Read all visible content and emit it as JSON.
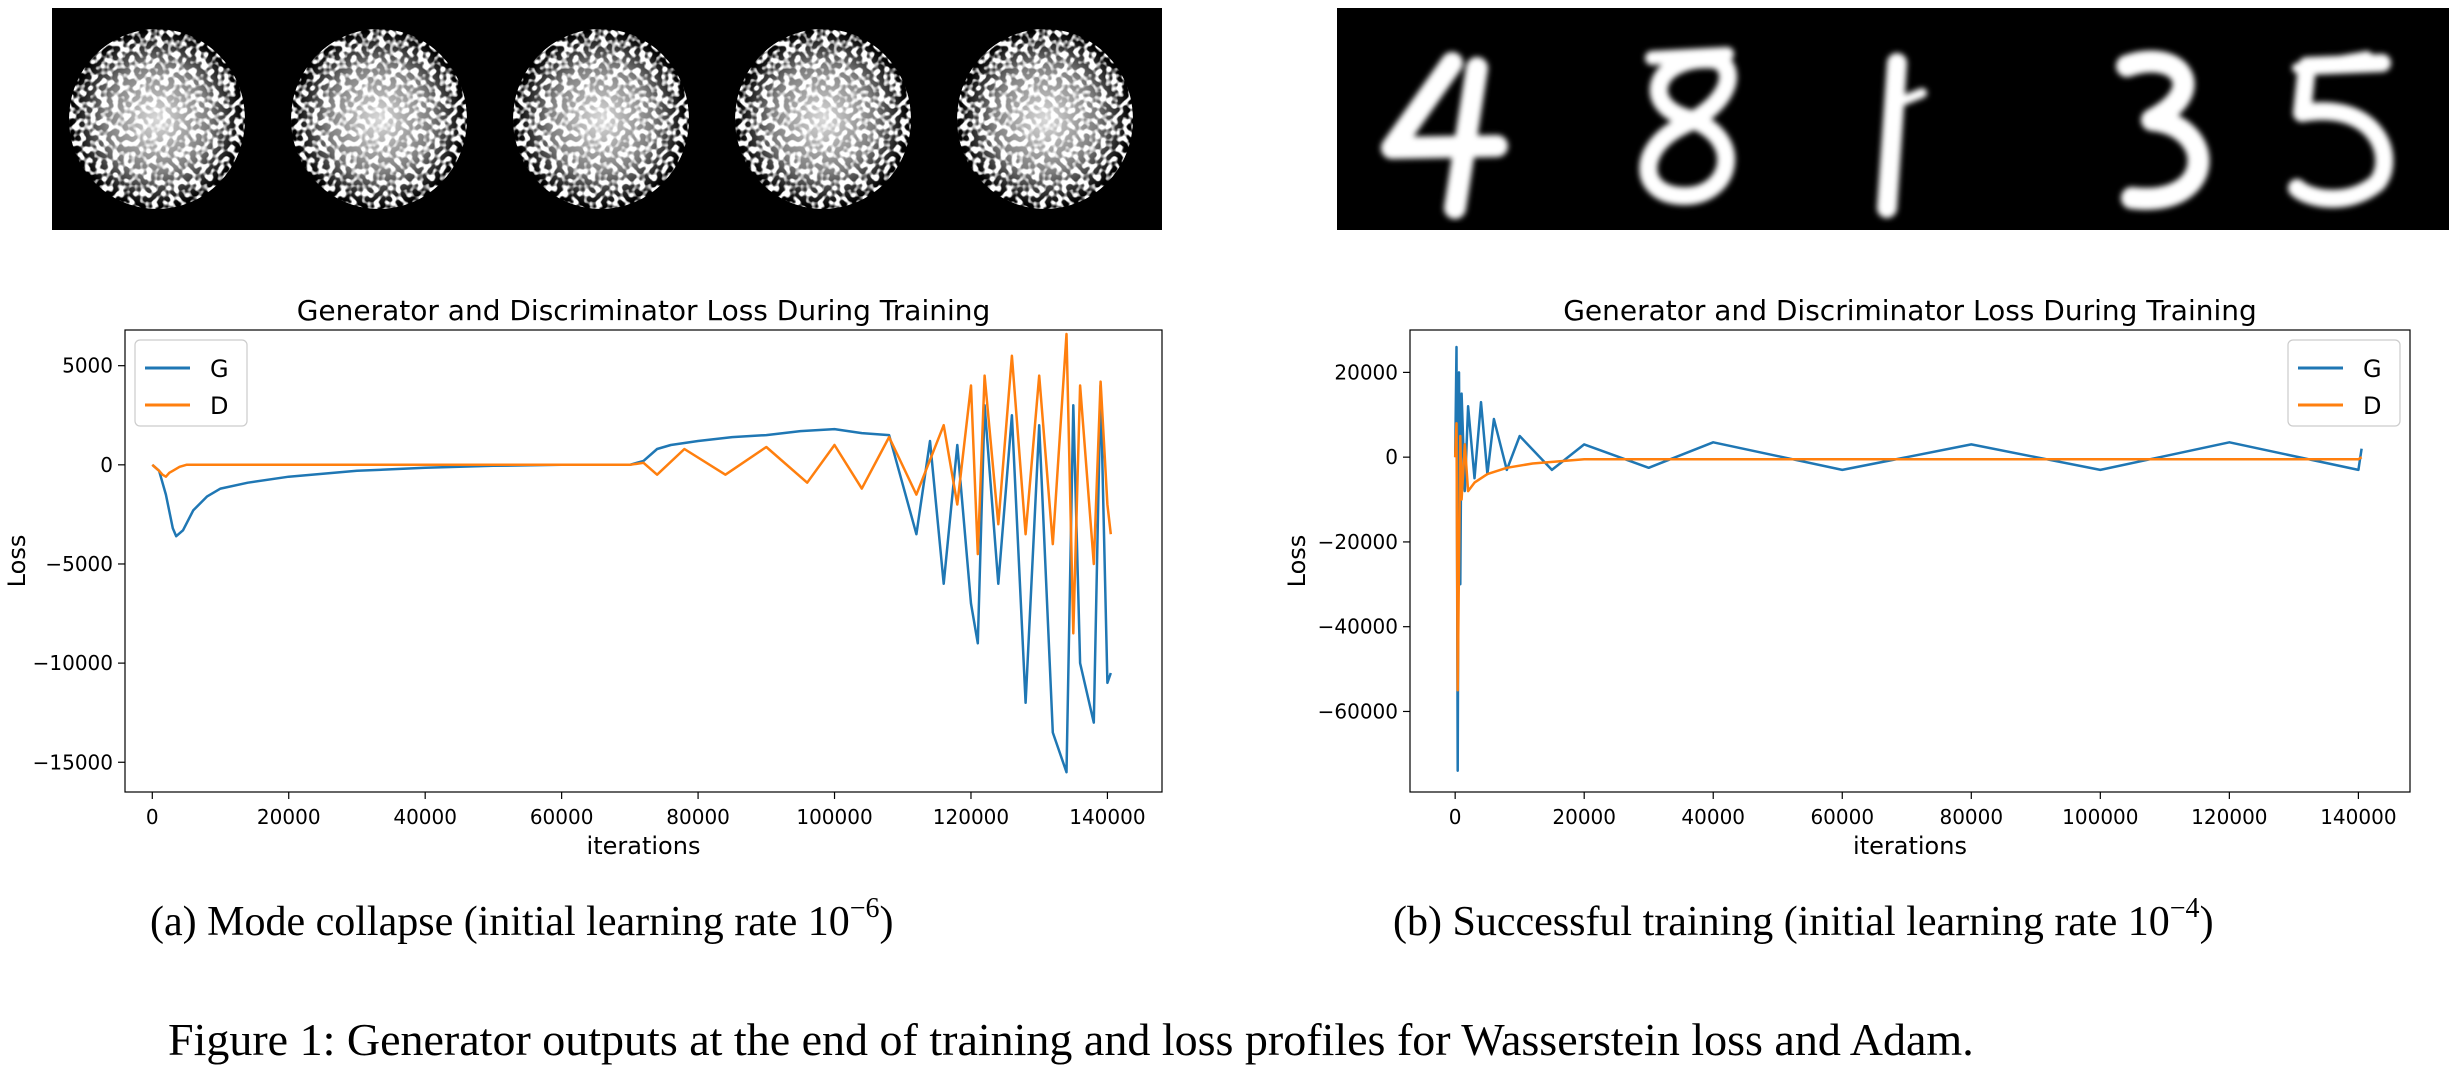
{
  "figure": {
    "caption": "Figure 1: Generator outputs at the end of training and loss profiles for Wasserstein loss and Adam."
  },
  "panels": [
    {
      "id": "a",
      "samples_description": "5 generated samples (mode collapse, all alike)",
      "caption_prefix": "(a) Mode collapse (initial learning rate 10",
      "caption_exp": "−6",
      "caption_suffix": ")"
    },
    {
      "id": "b",
      "samples_description": "5 generated digits",
      "digits": [
        "4",
        "8",
        "1",
        "3",
        "5"
      ],
      "caption_prefix": "(b) Successful training (initial learning rate 10",
      "caption_exp": "−4",
      "caption_suffix": ")"
    }
  ],
  "colors": {
    "G": "#1f77b4",
    "D": "#ff7f0e"
  },
  "chart_data": [
    {
      "type": "line",
      "title": "Generator and Discriminator Loss During Training",
      "xlabel": "iterations",
      "ylabel": "Loss",
      "xlim": [
        -4000,
        148000
      ],
      "ylim": [
        -16500,
        6800
      ],
      "xticks": [
        0,
        20000,
        40000,
        60000,
        80000,
        100000,
        120000,
        140000
      ],
      "yticks": [
        5000,
        0,
        -5000,
        -10000,
        -15000
      ],
      "legend": "upper-left",
      "series": [
        {
          "name": "G",
          "x": [
            0,
            1000,
            2000,
            3000,
            3500,
            4500,
            6000,
            8000,
            10000,
            14000,
            20000,
            30000,
            40000,
            50000,
            60000,
            70000,
            72000,
            74000,
            76000,
            80000,
            85000,
            90000,
            95000,
            100000,
            104000,
            108000,
            110000,
            112000,
            114000,
            116000,
            118000,
            120000,
            121000,
            122000,
            124000,
            126000,
            128000,
            130000,
            132000,
            134000,
            135000,
            136000,
            138000,
            139000,
            140000,
            140500
          ],
          "y": [
            0,
            -300,
            -1500,
            -3200,
            -3600,
            -3300,
            -2300,
            -1600,
            -1200,
            -900,
            -600,
            -300,
            -150,
            -50,
            0,
            0,
            200,
            800,
            1000,
            1200,
            1400,
            1500,
            1700,
            1800,
            1600,
            1500,
            -1000,
            -3500,
            1200,
            -6000,
            1000,
            -7000,
            -9000,
            3000,
            -6000,
            2500,
            -12000,
            2000,
            -13500,
            -15500,
            3000,
            -10000,
            -13000,
            4000,
            -11000,
            -10500
          ]
        },
        {
          "name": "D",
          "x": [
            0,
            1000,
            1500,
            2000,
            2500,
            3000,
            4000,
            5000,
            10000,
            20000,
            40000,
            60000,
            70000,
            72000,
            74000,
            78000,
            84000,
            90000,
            96000,
            100000,
            104000,
            108000,
            112000,
            116000,
            118000,
            120000,
            121000,
            122000,
            124000,
            126000,
            128000,
            130000,
            132000,
            134000,
            135000,
            136000,
            138000,
            139000,
            140000,
            140500
          ],
          "y": [
            0,
            -300,
            -500,
            -600,
            -400,
            -300,
            -100,
            0,
            0,
            0,
            0,
            0,
            0,
            100,
            -500,
            800,
            -500,
            900,
            -900,
            1000,
            -1200,
            1400,
            -1500,
            2000,
            -2000,
            4000,
            -4500,
            4500,
            -3000,
            5500,
            -3500,
            4500,
            -4000,
            6600,
            -8500,
            4000,
            -5000,
            4200,
            -2000,
            -3500
          ]
        }
      ]
    },
    {
      "type": "line",
      "title": "Generator and Discriminator Loss During Training",
      "xlabel": "iterations",
      "ylabel": "Loss",
      "xlim": [
        -7000,
        148000
      ],
      "ylim": [
        -79000,
        30000
      ],
      "xticks": [
        0,
        20000,
        40000,
        60000,
        80000,
        100000,
        120000,
        140000
      ],
      "yticks": [
        20000,
        0,
        -20000,
        -40000,
        -60000
      ],
      "legend": "upper-right",
      "series": [
        {
          "name": "G",
          "x": [
            0,
            200,
            400,
            600,
            800,
            1000,
            1500,
            2000,
            3000,
            4000,
            5000,
            6000,
            8000,
            10000,
            15000,
            20000,
            30000,
            40000,
            60000,
            80000,
            100000,
            120000,
            140000,
            140500
          ],
          "y": [
            0,
            26000,
            -74000,
            20000,
            -30000,
            15000,
            -8000,
            12000,
            -5000,
            13000,
            -4000,
            9000,
            -3000,
            5000,
            -3000,
            3000,
            -2500,
            3500,
            -3000,
            3000,
            -3000,
            3500,
            -3000,
            2000
          ]
        },
        {
          "name": "D",
          "x": [
            0,
            200,
            400,
            600,
            800,
            1000,
            1500,
            2000,
            3000,
            5000,
            8000,
            12000,
            20000,
            40000,
            60000,
            80000,
            100000,
            120000,
            140000,
            140500
          ],
          "y": [
            0,
            8000,
            -55000,
            -25000,
            5000,
            -10000,
            3000,
            -8000,
            -6000,
            -4000,
            -2500,
            -1500,
            -500,
            -500,
            -500,
            -500,
            -500,
            -500,
            -500,
            0
          ]
        }
      ]
    }
  ]
}
